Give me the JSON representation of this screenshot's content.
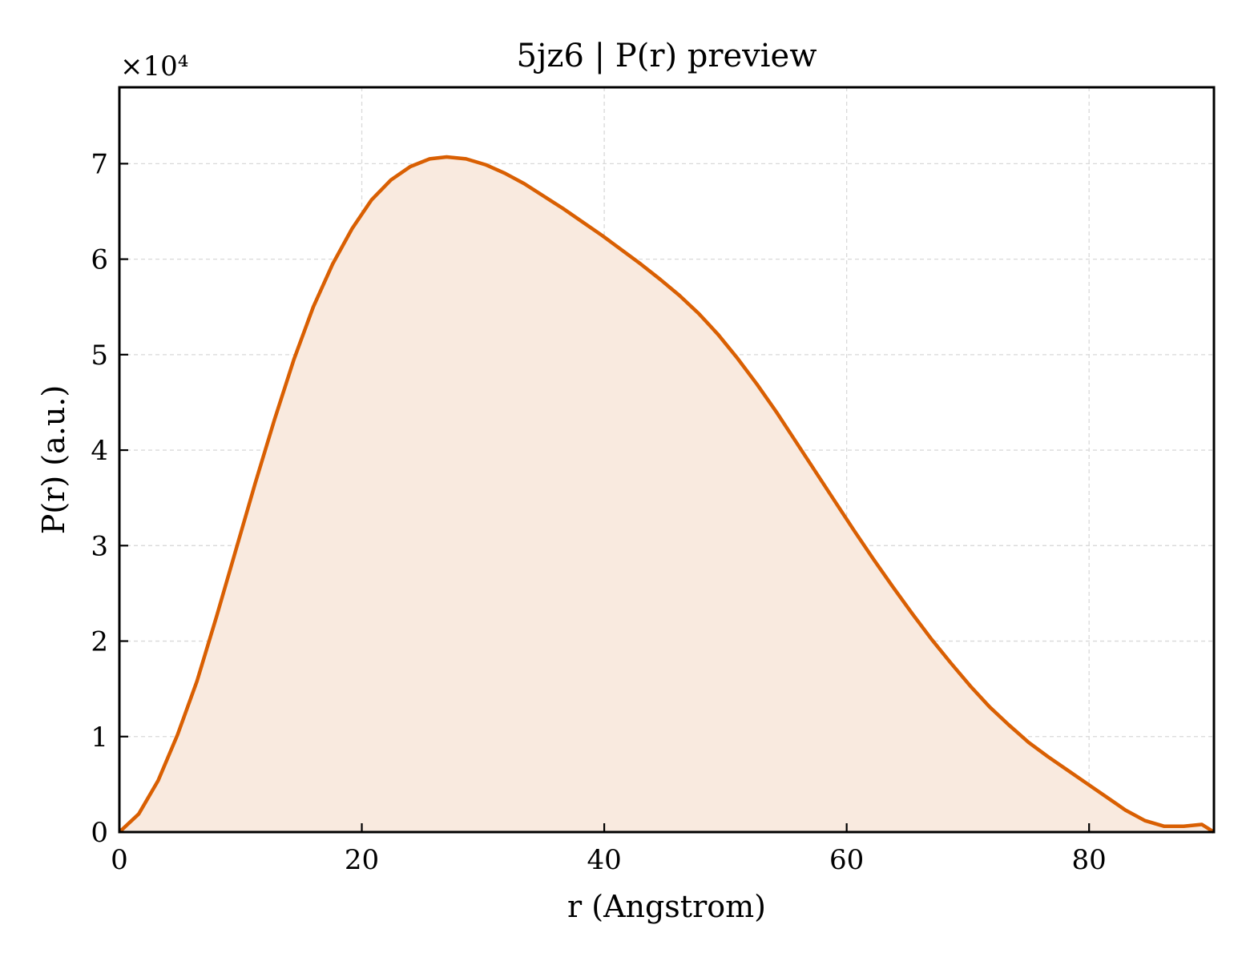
{
  "chart_data": {
    "type": "area",
    "title": "5jz6 | P(r) preview",
    "xlabel": "r (Angstrom)",
    "ylabel": "P(r) (a.u.)",
    "y_scale_label": "×10⁴",
    "y_multiplier": 10000,
    "xlim": [
      0,
      90.3
    ],
    "ylim": [
      0,
      78000
    ],
    "xticks": [
      0,
      20,
      40,
      60,
      80
    ],
    "yticks": [
      0,
      10000,
      20000,
      30000,
      40000,
      50000,
      60000,
      70000
    ],
    "ytick_labels": [
      "0",
      "1",
      "2",
      "3",
      "4",
      "5",
      "6",
      "7"
    ],
    "xtick_labels": [
      "0",
      "20",
      "40",
      "60",
      "80"
    ],
    "grid": true,
    "legend": "none",
    "colors": {
      "line": "#d95f02",
      "fill": "#f9eadf",
      "grid": "#d9d9d9"
    },
    "series": [
      {
        "x": [
          0,
          1.6,
          3.2,
          4.8,
          6.4,
          8.0,
          9.6,
          11.2,
          12.8,
          14.4,
          16.0,
          17.6,
          19.2,
          20.8,
          22.4,
          24.0,
          25.6,
          27.0,
          28.6,
          30.2,
          31.8,
          33.4,
          35.0,
          36.6,
          38.2,
          39.8,
          41.4,
          43.0,
          44.6,
          46.2,
          47.8,
          49.4,
          51.0,
          52.6,
          54.2,
          55.8,
          57.4,
          59.0,
          60.6,
          62.2,
          63.8,
          65.4,
          67.0,
          68.6,
          70.2,
          71.8,
          73.4,
          75.0,
          76.6,
          78.2,
          79.8,
          81.4,
          83.0,
          84.6,
          86.2,
          87.8,
          89.3,
          90.3
        ],
        "y": [
          0,
          1900,
          5400,
          10200,
          15800,
          22500,
          29500,
          36500,
          43200,
          49500,
          55000,
          59500,
          63200,
          66200,
          68300,
          69700,
          70500,
          70700,
          70500,
          69900,
          69000,
          67900,
          66600,
          65300,
          63900,
          62500,
          61000,
          59500,
          57900,
          56200,
          54300,
          52100,
          49600,
          46900,
          44000,
          40900,
          37800,
          34700,
          31600,
          28600,
          25700,
          22900,
          20200,
          17700,
          15300,
          13100,
          11200,
          9400,
          7900,
          6500,
          5100,
          3700,
          2300,
          1200,
          600,
          600,
          800,
          0
        ]
      }
    ]
  }
}
